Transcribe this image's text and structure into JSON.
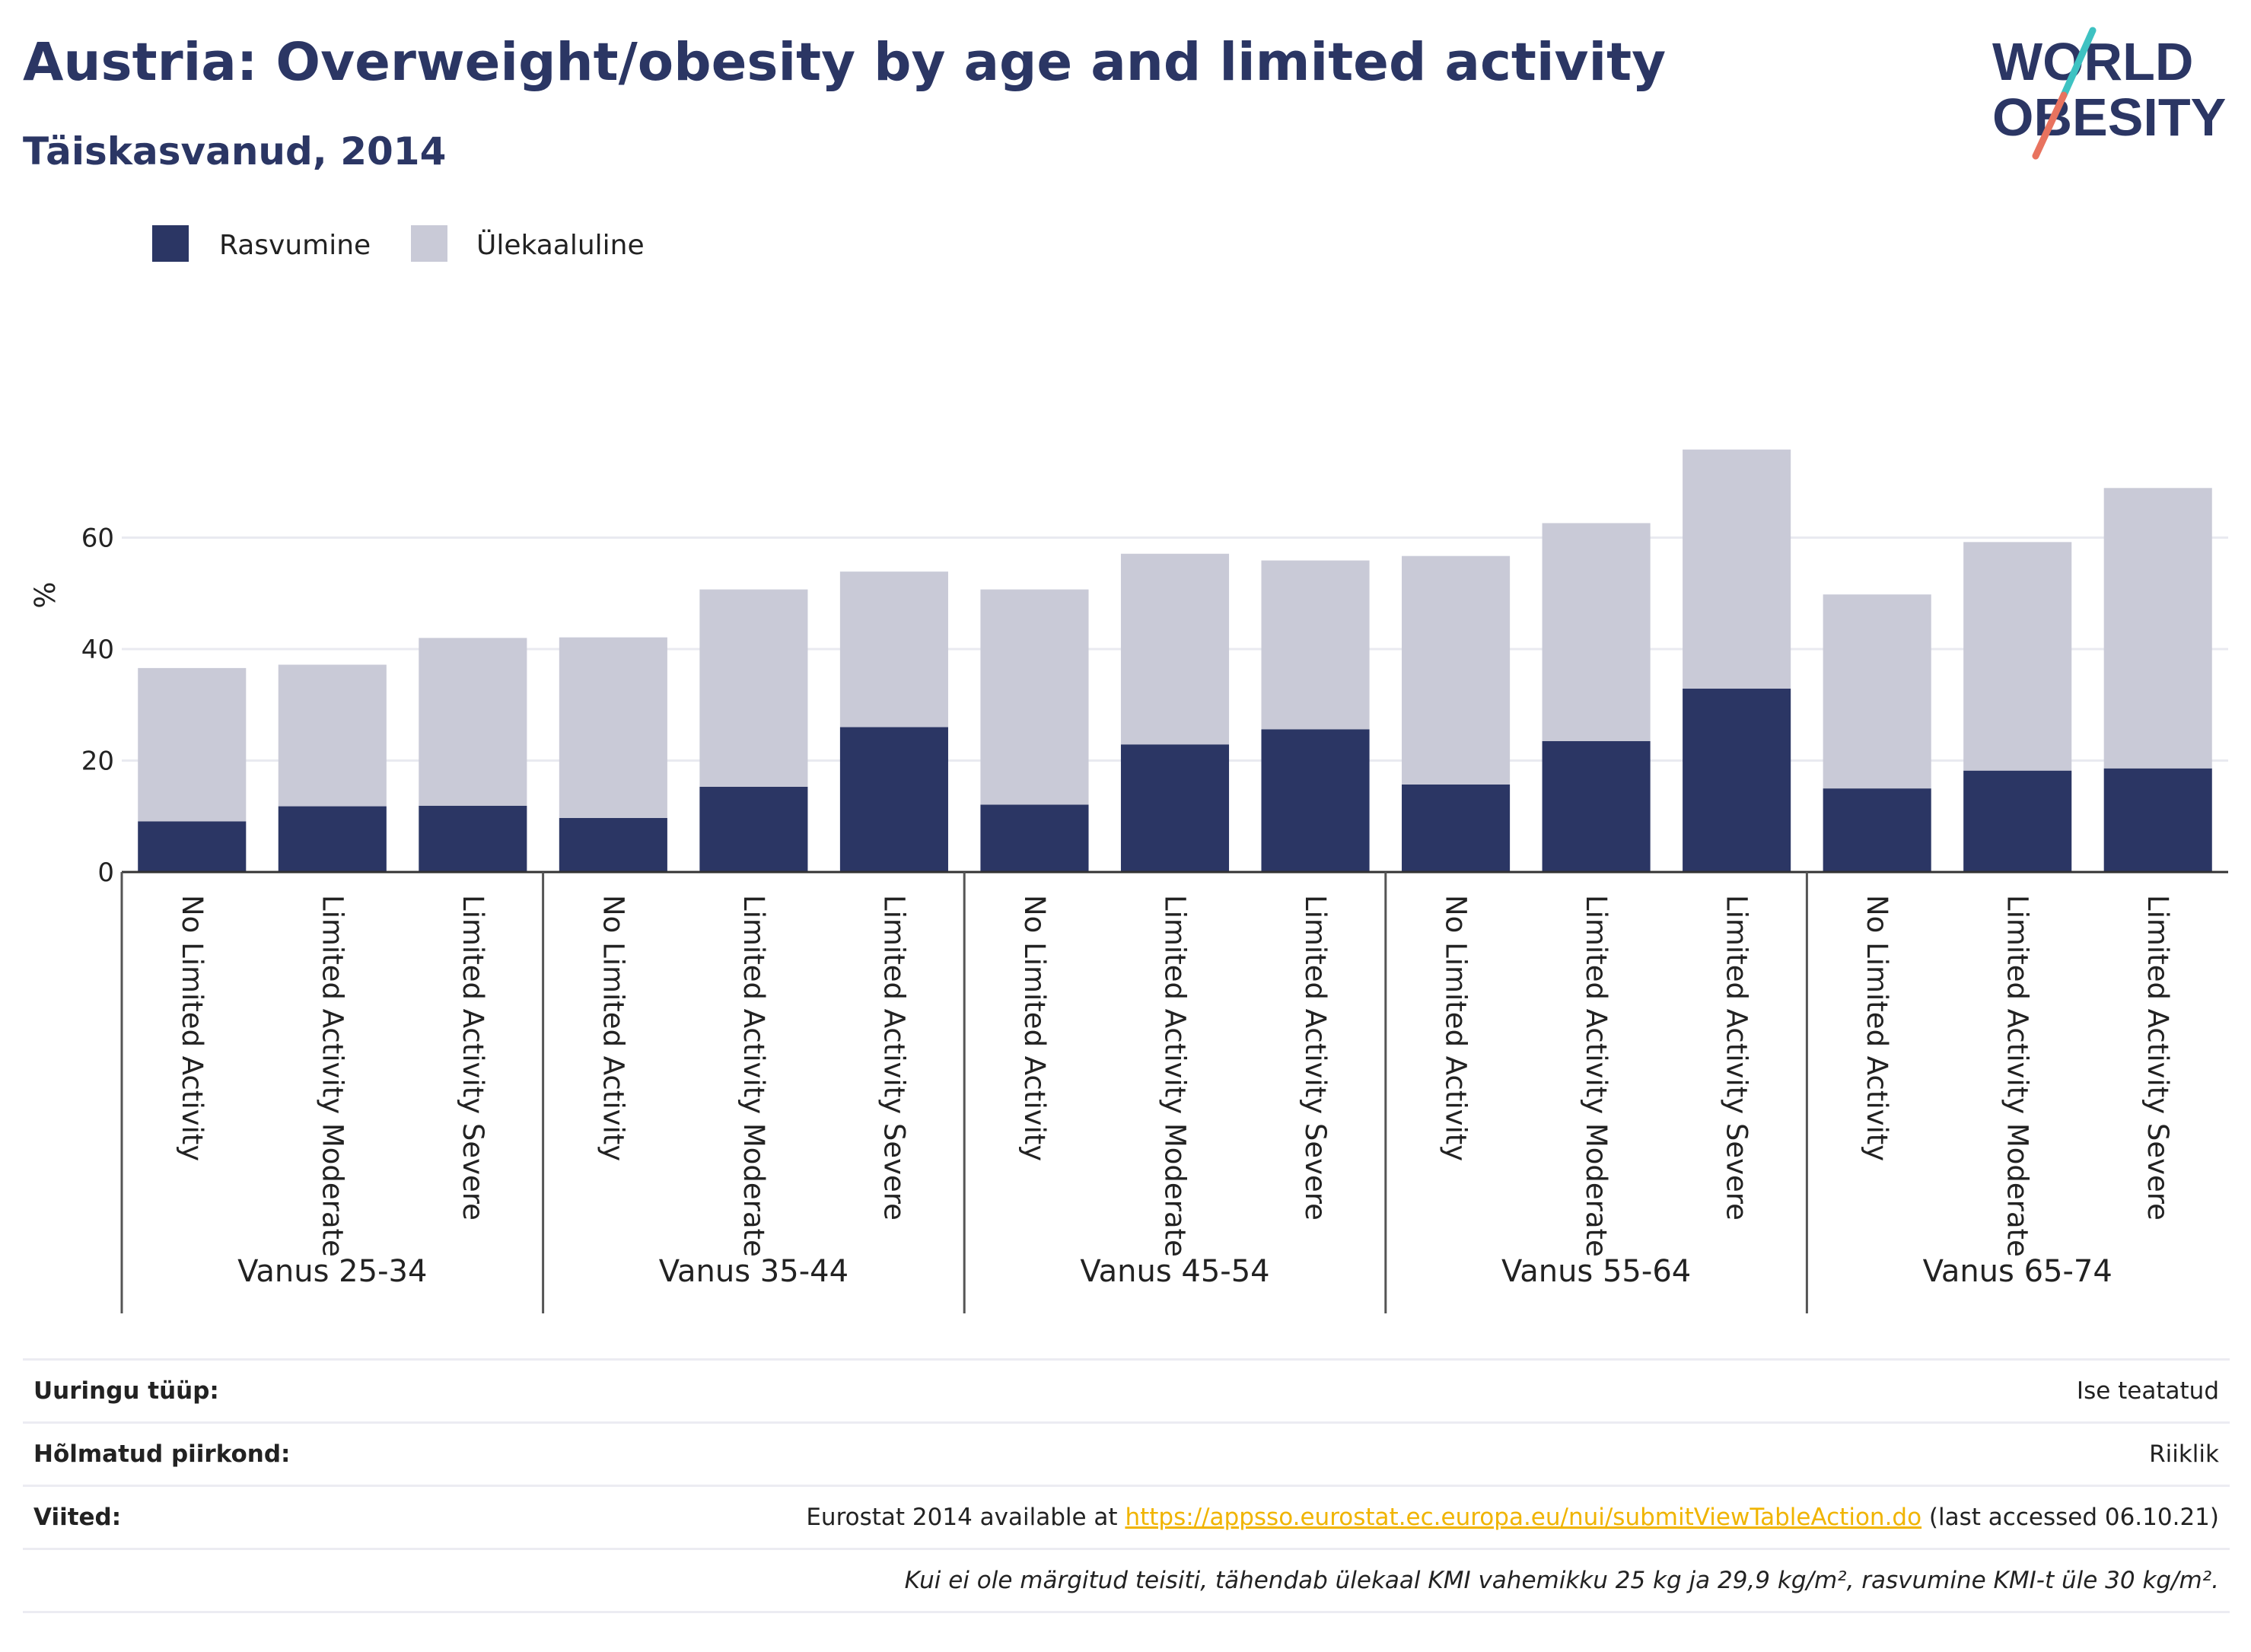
{
  "title": "Austria: Overweight/obesity by age and limited activity",
  "subtitle": "Täiskasvanud, 2014",
  "logo": {
    "line1": "WORLD",
    "line2": "OBESITY",
    "colors": [
      "#2b3664",
      "#3ec2c2",
      "#e8735f"
    ]
  },
  "colors": {
    "obesity": "#2b3664",
    "overweight": "#c9cad7",
    "grid": "#e9eaf0",
    "text": "#222222"
  },
  "chart_data": {
    "type": "bar",
    "stacked": true,
    "ylabel": "%",
    "ylim": [
      0,
      80
    ],
    "yticks": [
      0,
      20,
      40,
      60
    ],
    "legend": "top-left",
    "grid": true,
    "groups": [
      {
        "label": "Vanus 25-34",
        "categories": [
          "No Limited Activity",
          "Limited Activity Moderate",
          "Limited Activity Severe"
        ]
      },
      {
        "label": "Vanus 35-44",
        "categories": [
          "No Limited Activity",
          "Limited Activity Moderate",
          "Limited Activity Severe"
        ]
      },
      {
        "label": "Vanus 45-54",
        "categories": [
          "No Limited Activity",
          "Limited Activity Moderate",
          "Limited Activity Severe"
        ]
      },
      {
        "label": "Vanus 55-64",
        "categories": [
          "No Limited Activity",
          "Limited Activity Moderate",
          "Limited Activity Severe"
        ]
      },
      {
        "label": "Vanus 65-74",
        "categories": [
          "No Limited Activity",
          "Limited Activity Moderate",
          "Limited Activity Severe"
        ]
      }
    ],
    "series": [
      {
        "name": "Rasvumine",
        "color": "#2b3664",
        "values": [
          9.1,
          11.8,
          11.9,
          9.7,
          15.3,
          26.0,
          12.1,
          22.9,
          25.6,
          15.7,
          23.5,
          32.9,
          15.0,
          18.2,
          18.6
        ]
      },
      {
        "name": "Ülekaaluline",
        "color": "#c9cad7",
        "values": [
          27.5,
          25.4,
          30.1,
          32.4,
          35.4,
          27.9,
          38.6,
          34.2,
          30.3,
          41.0,
          39.1,
          42.9,
          34.8,
          41.0,
          50.3
        ]
      }
    ]
  },
  "info": {
    "survey_label": "Uuringu tüüp:",
    "survey_value": "Ise teatatud",
    "region_label": "Hõlmatud piirkond:",
    "region_value": "Riiklik",
    "refs_label": "Viited:",
    "refs_prefix": "Eurostat 2014 available at ",
    "refs_link": "https://appsso.eurostat.ec.europa.eu/nui/submitViewTableAction.do",
    "refs_suffix": " (last accessed 06.10.21)",
    "note": "Kui ei ole märgitud teisiti, tähendab ülekaal KMI vahemikku 25 kg ja 29,9 kg/m², rasvumine KMI-t üle 30 kg/m²."
  }
}
